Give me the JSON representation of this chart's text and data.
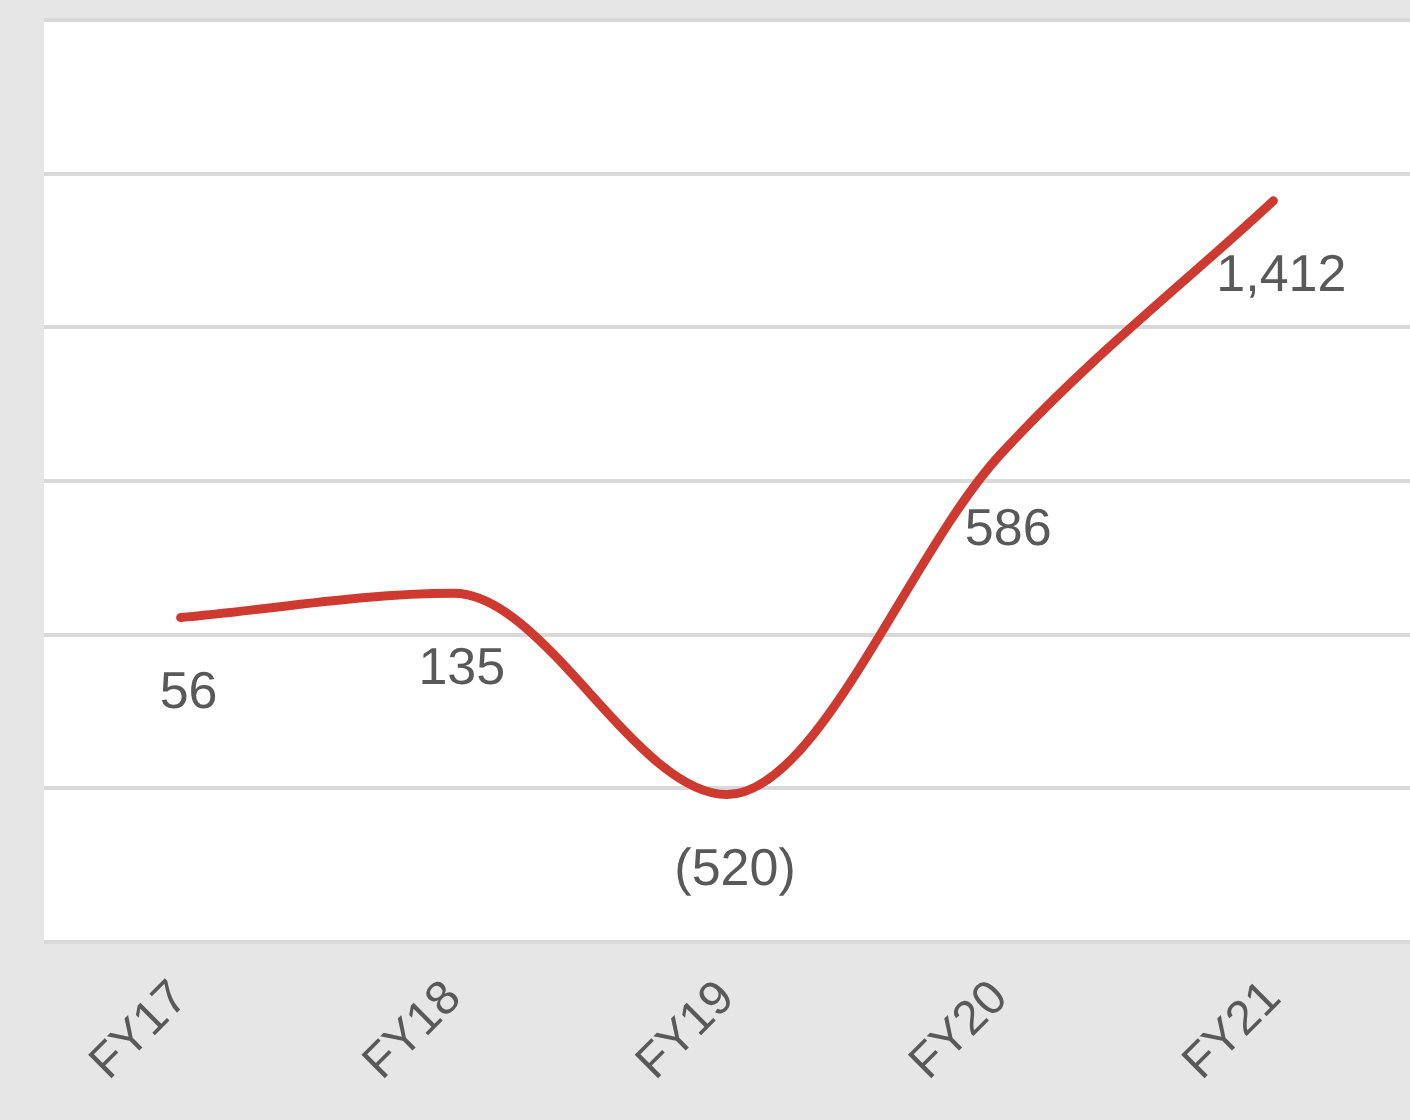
{
  "chart_data": {
    "type": "line",
    "categories": [
      "FY17",
      "FY18",
      "FY19",
      "FY20",
      "FY21"
    ],
    "series": [
      {
        "color": "#cf3a30",
        "values": [
          56,
          135,
          -520,
          586,
          1412
        ],
        "value_labels": [
          "56",
          "135",
          "(520)",
          "586",
          "1,412"
        ]
      }
    ],
    "ylim": [
      -1000,
      2000
    ],
    "yticks": [
      {
        "value": -1000,
        "label": null
      },
      {
        "value": -500,
        "label": null
      },
      {
        "value": 0,
        "label": null
      },
      {
        "value": 500,
        "label": null
      },
      {
        "value": 1000,
        "label": null
      },
      {
        "value": 1500,
        "label": null
      },
      {
        "value": 2000,
        "label": null
      }
    ],
    "grid": "y",
    "tick_labels": "x",
    "line_style": "solid",
    "legend": false
  }
}
